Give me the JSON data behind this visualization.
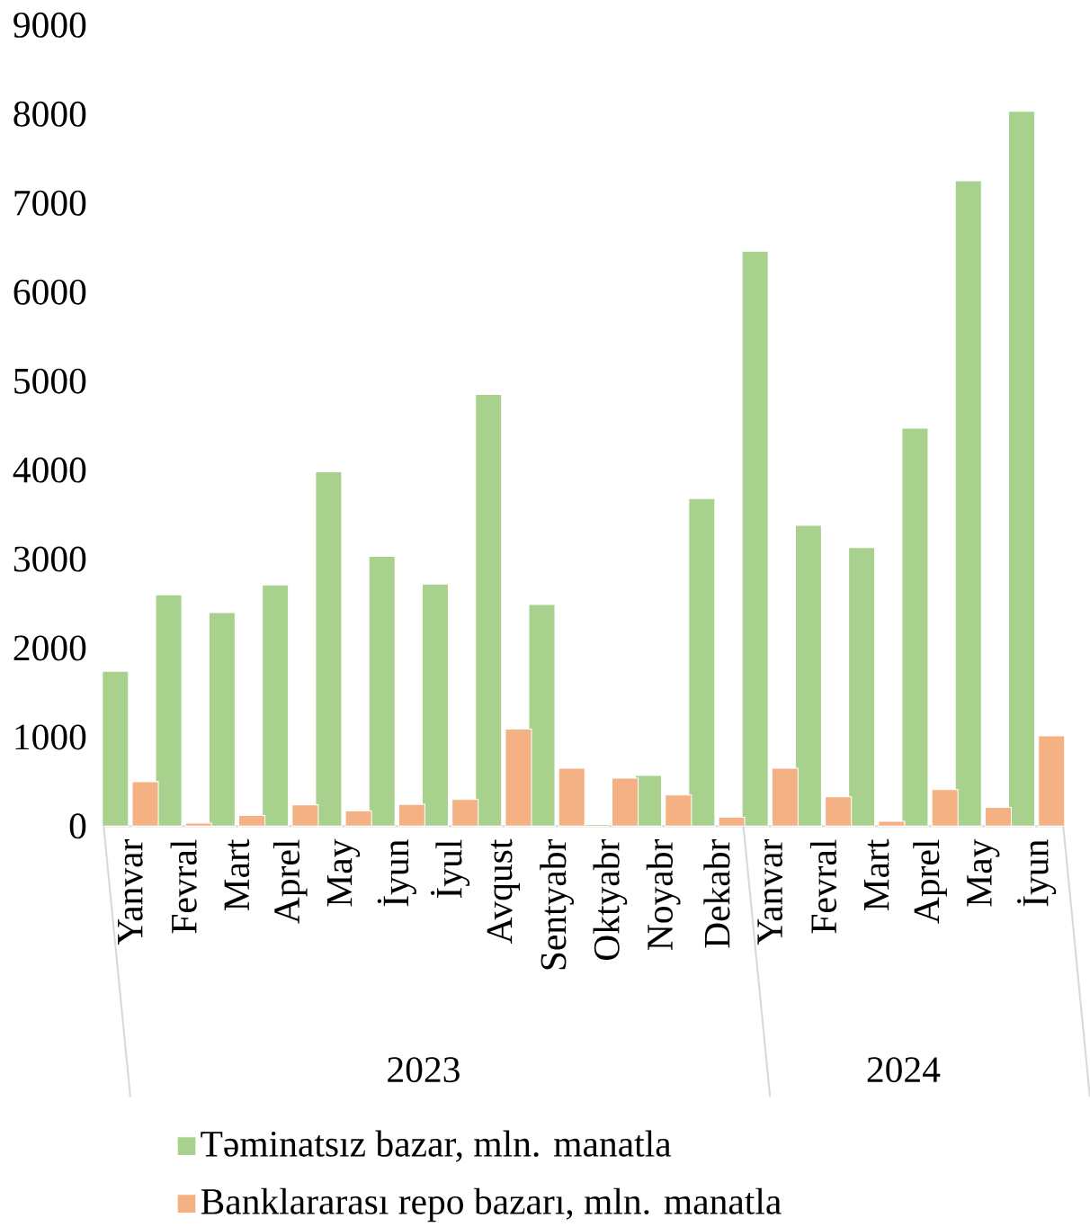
{
  "chart_data": {
    "type": "bar",
    "categories": [
      "Yanvar",
      "Fevral",
      "Mart",
      "Aprel",
      "May",
      "İyun",
      "İyul",
      "Avqust",
      "Sentyabr",
      "Oktyabr",
      "Noyabr",
      "Dekabr",
      "Yanvar",
      "Fevral",
      "Mart",
      "Aprel",
      "May",
      "İyun"
    ],
    "series": [
      {
        "name": "Təminatsız bazar, mln. manatla",
        "color": "#a9d18e",
        "values": [
          1740,
          2600,
          2400,
          2710,
          3980,
          3030,
          2720,
          4850,
          2490,
          20,
          570,
          3680,
          6460,
          3380,
          3130,
          4470,
          7250,
          8030
        ]
      },
      {
        "name": "Banklararası repo bazarı, mln. manatla",
        "color": "#f4b183",
        "values": [
          500,
          35,
          120,
          240,
          170,
          245,
          300,
          1090,
          650,
          540,
          350,
          100,
          650,
          330,
          55,
          410,
          210,
          1015
        ]
      }
    ],
    "ylim": [
      0,
      9000
    ],
    "yticks": [
      0,
      1000,
      2000,
      3000,
      4000,
      5000,
      6000,
      7000,
      8000,
      9000
    ],
    "annotations": [
      "2023",
      "2024"
    ],
    "legend": "bottom",
    "grid": false
  }
}
